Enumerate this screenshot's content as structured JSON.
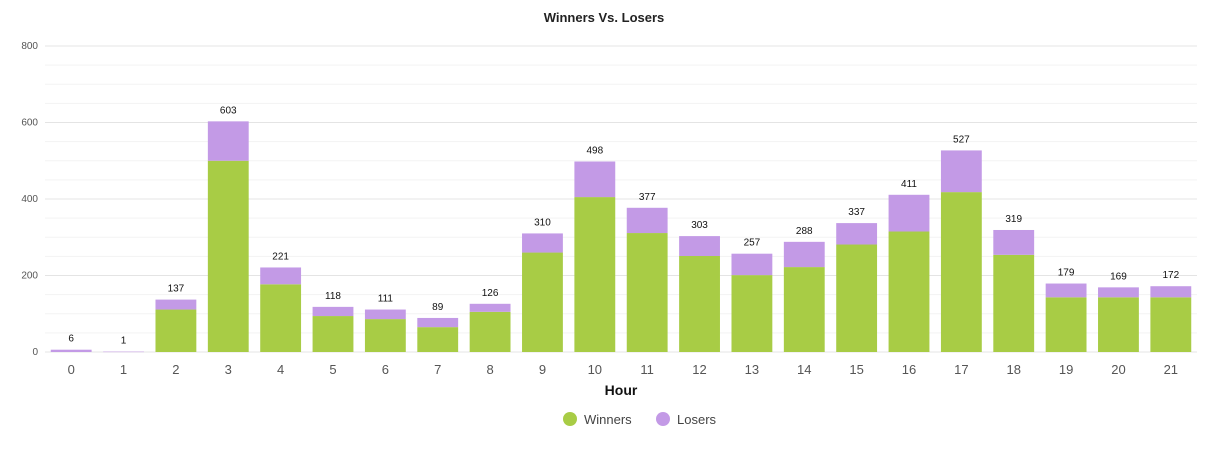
{
  "chart_data": {
    "type": "bar",
    "stacked": true,
    "title": "Winners Vs. Losers",
    "xlabel": "Hour",
    "ylabel": "",
    "ylim": [
      0,
      800
    ],
    "yticks": [
      0,
      200,
      400,
      600,
      800
    ],
    "categories": [
      "0",
      "1",
      "2",
      "3",
      "4",
      "5",
      "6",
      "7",
      "8",
      "9",
      "10",
      "11",
      "12",
      "13",
      "14",
      "15",
      "16",
      "17",
      "18",
      "19",
      "20",
      "21"
    ],
    "series": [
      {
        "name": "Winners",
        "color": "#a8cc45",
        "values": [
          0,
          0,
          111,
          500,
          177,
          94,
          86,
          65,
          105,
          260,
          405,
          311,
          251,
          201,
          222,
          281,
          315,
          418,
          254,
          143,
          143,
          143
        ]
      },
      {
        "name": "Losers",
        "color": "#c39ae6",
        "values": [
          6,
          1,
          26,
          103,
          44,
          24,
          25,
          24,
          21,
          50,
          93,
          66,
          52,
          56,
          66,
          56,
          96,
          109,
          65,
          36,
          26,
          29
        ]
      }
    ],
    "totals": [
      6,
      1,
      137,
      603,
      221,
      118,
      111,
      89,
      126,
      310,
      498,
      377,
      303,
      257,
      288,
      337,
      411,
      527,
      319,
      179,
      169,
      172
    ],
    "grid": true,
    "legend": "bottom-center"
  }
}
